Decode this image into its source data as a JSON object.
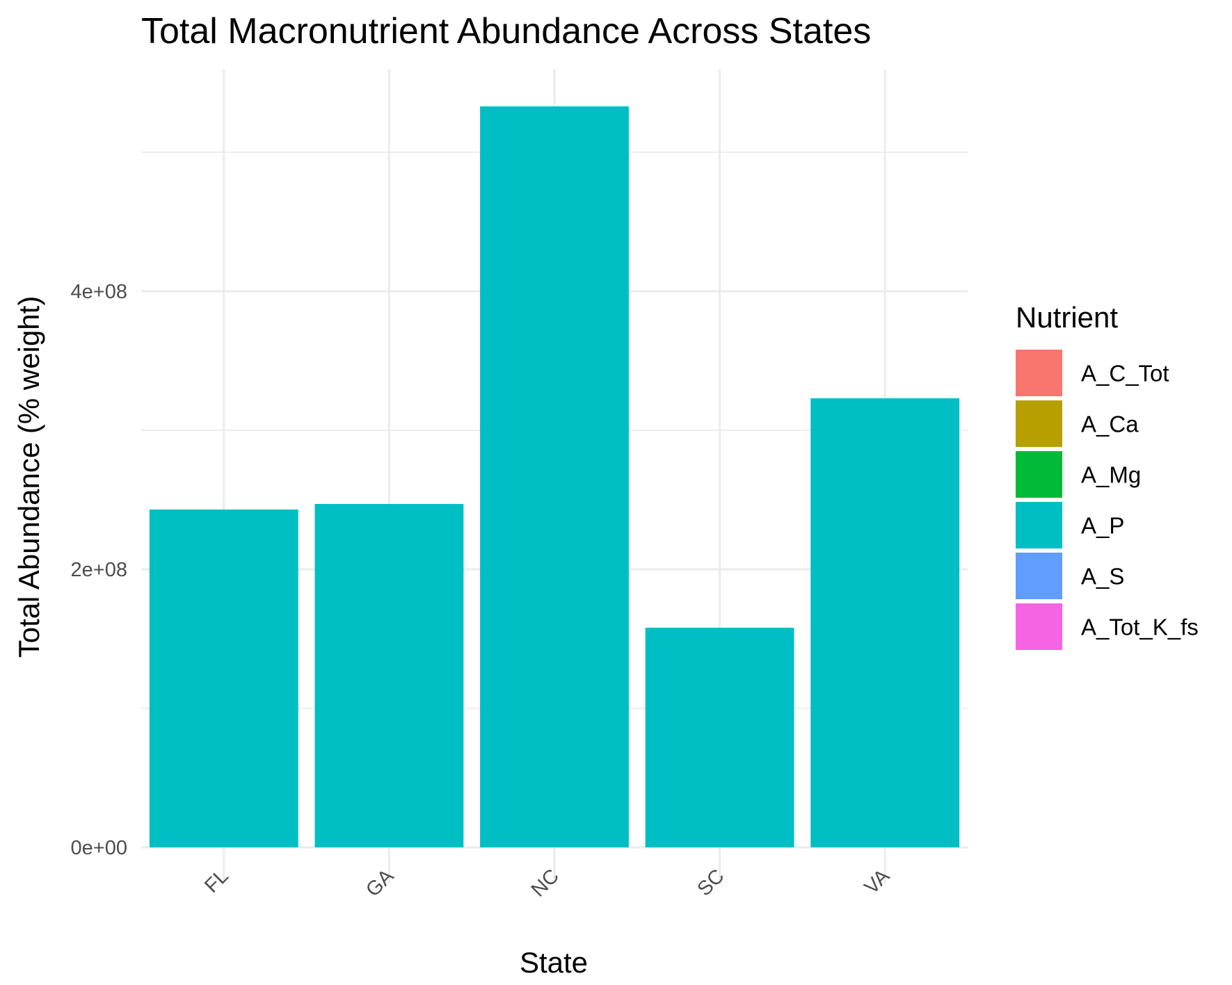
{
  "chart_data": {
    "type": "bar",
    "title": "Total Macronutrient Abundance Across States",
    "xlabel": "State",
    "ylabel": "Total Abundance (% weight)",
    "categories": [
      "FL",
      "GA",
      "NC",
      "SC",
      "VA"
    ],
    "series": [
      {
        "name": "A_P",
        "color": "#00BFC4",
        "values": [
          243000000,
          247000000,
          533000000,
          158000000,
          323000000
        ]
      }
    ],
    "ylim": [
      0,
      560000000
    ],
    "y_ticks": [
      0,
      200000000,
      400000000
    ],
    "y_tick_labels": [
      "0e+00",
      "2e+08",
      "4e+08"
    ],
    "y_minor_ticks": [
      100000000,
      300000000,
      500000000
    ],
    "grid": true,
    "x_tick_rotation": "45",
    "legend": {
      "title": "Nutrient",
      "position": "right",
      "items": [
        {
          "label": "A_C_Tot",
          "color": "#F8766D"
        },
        {
          "label": "A_Ca",
          "color": "#B79F00"
        },
        {
          "label": "A_Mg",
          "color": "#00BA38"
        },
        {
          "label": "A_P",
          "color": "#00BFC4"
        },
        {
          "label": "A_S",
          "color": "#619CFF"
        },
        {
          "label": "A_Tot_K_fs",
          "color": "#F564E3"
        }
      ]
    }
  }
}
